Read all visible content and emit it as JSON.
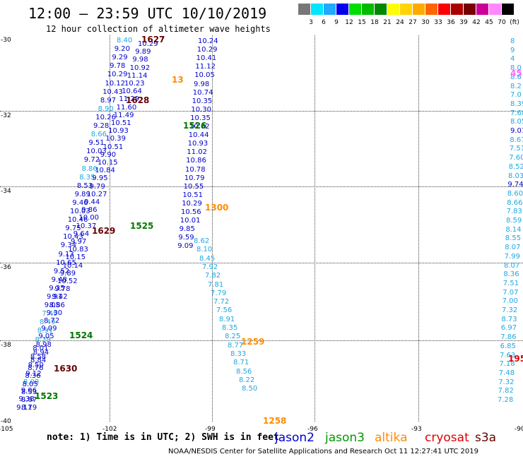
{
  "header": {
    "title": "12:00 – 23:59 UTC 10/10/2019",
    "subtitle": "12 hour collection of altimeter wave heights"
  },
  "color_scale": {
    "labels": [
      "3",
      "6",
      "9",
      "12",
      "15",
      "18",
      "21",
      "24",
      "27",
      "30",
      "33",
      "36",
      "39",
      "42",
      "45",
      "70",
      "(ft)"
    ],
    "colors": [
      "#777777",
      "#00e6ff",
      "#1faaff",
      "#0000ee",
      "#00dd00",
      "#00bb00",
      "#008800",
      "#ffff00",
      "#ffd400",
      "#ffaa00",
      "#ff6600",
      "#ff0000",
      "#aa0000",
      "#770000",
      "#cc0099",
      "#ff88ff",
      "#000000"
    ]
  },
  "axes": {
    "lat_labels": [
      "-30",
      "-32",
      "-34",
      "-36",
      "-38",
      "-40"
    ],
    "lon_labels": [
      "-105",
      "-102",
      "-99",
      "-96",
      "-93",
      "-90"
    ]
  },
  "passes": {
    "colors": {
      "jason2": "#0000cc",
      "jason3": "#007700",
      "altika": "#ff8c00",
      "cryosat": "#dd0000",
      "s3a": "#660000",
      "cyan": "#1fa8e0",
      "pink": "#ff66ff"
    },
    "track_labels": [
      {
        "t": "1627",
        "c": "s3a"
      },
      {
        "t": "1628",
        "c": "s3a"
      },
      {
        "t": "1629",
        "c": "s3a"
      },
      {
        "t": "1630",
        "c": "s3a"
      },
      {
        "t": "1525",
        "c": "jason3"
      },
      {
        "t": "1526",
        "c": "jason3"
      },
      {
        "t": "1524",
        "c": "jason3"
      },
      {
        "t": "1523",
        "c": "jason3"
      },
      {
        "t": "1300",
        "c": "altika"
      },
      {
        "t": "1259",
        "c": "altika"
      },
      {
        "t": "1258",
        "c": "altika"
      },
      {
        "t": "13",
        "c": "altika"
      },
      {
        "t": "195",
        "c": "cryosat"
      },
      {
        "t": "45.",
        "c": "pink"
      }
    ],
    "trackA": [
      "8.40",
      "9.20",
      "9.29",
      "9.78",
      "10.29",
      "10.12",
      "10.43",
      "8.97",
      "8.90",
      "10.26",
      "9.28",
      "8.66",
      "9.51",
      "10.03",
      "9.72",
      "8.86",
      "8.35",
      "8.53",
      "9.89",
      "9.46",
      "10.03",
      "10.46",
      "9.75",
      "10.43",
      "9.34",
      "9.13",
      "10.65",
      "9.52",
      "9.48",
      "9.35",
      "9.91",
      "9.05",
      "7.49",
      "8.49",
      "8.91",
      "8.39",
      "8.01",
      "8.58",
      "8.50",
      "9.12",
      "8.09",
      "9.06",
      "9.38",
      "9.11"
    ],
    "trackAc": [
      "cyan",
      "jason2",
      "jason2",
      "jason2",
      "jason2",
      "jason2",
      "jason2",
      "jason2",
      "cyan",
      "jason2",
      "jason2",
      "cyan",
      "jason2",
      "jason2",
      "jason2",
      "cyan",
      "cyan",
      "jason2",
      "jason2",
      "jason2",
      "jason2",
      "jason2",
      "jason2",
      "jason2",
      "jason2",
      "jason2",
      "jason2",
      "jason2",
      "jason2",
      "jason2",
      "jason2",
      "jason2",
      "cyan",
      "cyan",
      "cyan",
      "cyan",
      "jason2",
      "jason2",
      "jason2",
      "jason2",
      "cyan",
      "jason2",
      "jason2",
      "jason2"
    ],
    "trackA2": [
      "10.29",
      "9.89",
      "9.98",
      "10.92",
      "11.14",
      "10.23",
      "10.64",
      "11.29",
      "11.60",
      "11.49",
      "10.51",
      "10.93",
      "10.39",
      "10.51",
      "9.90",
      "10.15",
      "10.84",
      "9.95",
      "9.79",
      "10.27",
      "9.44",
      "9.86",
      "10.00",
      "10.37",
      "9.64",
      "9.97",
      "10.83",
      "10.15",
      "10.14",
      "9.89",
      "10.52",
      "9.78",
      "9.42",
      "8.86",
      "9.30",
      "8.72",
      "9.09",
      "9.05",
      "8.98",
      "8.94",
      "8.84",
      "8.76",
      "8.36",
      "8.05",
      "8.53",
      "8.67",
      "8.79"
    ],
    "trackB": [
      "10.24",
      "10.29",
      "10.41",
      "11.12",
      "10.05",
      "9.98",
      "10.74",
      "10.35",
      "10.30",
      "10.35",
      "10.62",
      "10.44",
      "10.93",
      "11.02",
      "10.86",
      "10.78",
      "10.79",
      "10.55",
      "10.51",
      "10.29",
      "10.56",
      "10.01",
      "9.85",
      "9.59",
      "9.09"
    ],
    "trackC": [
      "8.62",
      "8.10",
      "8.45",
      "7.92",
      "7.82",
      "7.81",
      "7.79",
      "7.72",
      "7.56",
      "8.91",
      "8.35",
      "8.25",
      "8.77",
      "8.33",
      "8.71",
      "8.56",
      "8.22",
      "8.50"
    ],
    "trackD": [
      "8",
      "9",
      "4",
      "8.0",
      "8.6",
      "8.2",
      "7.0",
      "8.39",
      "7.68",
      "8.05",
      "9.01",
      "8.67",
      "7.51",
      "7.60",
      "8.52",
      "8.03",
      "9.74",
      "8.60",
      "8.66",
      "7.83",
      "8.59",
      "8.14",
      "8.55",
      "8.07",
      "7.99",
      "8.07",
      "8.36",
      "7.51",
      "7.07",
      "7.00",
      "7.32",
      "8.73",
      "6.97",
      "7.86",
      "6.85",
      "7.63",
      "7.18",
      "7.48",
      "7.32",
      "7.82",
      "7.28"
    ],
    "trackDc": [
      "cyan",
      "cyan",
      "cyan",
      "cyan",
      "cyan",
      "cyan",
      "cyan",
      "cyan",
      "cyan",
      "cyan",
      "jason2",
      "cyan",
      "cyan",
      "cyan",
      "cyan",
      "cyan",
      "jason2",
      "cyan",
      "cyan",
      "cyan",
      "cyan",
      "cyan",
      "cyan",
      "cyan",
      "cyan",
      "cyan",
      "cyan",
      "cyan",
      "cyan",
      "cyan",
      "cyan",
      "cyan",
      "cyan",
      "cyan",
      "cyan",
      "cyan",
      "cyan",
      "cyan",
      "cyan",
      "cyan",
      "cyan"
    ]
  },
  "footer": {
    "note": "note: 1) Time is in UTC; 2) SWH is in feet",
    "legend": [
      {
        "label": "jason2",
        "color": "#0000cc"
      },
      {
        "label": "jason3",
        "color": "#009900"
      },
      {
        "label": "altika",
        "color": "#ff8c00"
      },
      {
        "label": "cryosat",
        "color": "#dd0000"
      },
      {
        "label": "s3a",
        "color": "#660000"
      }
    ],
    "credit": "NOAA/NESDIS Center for Satellite Applications and Research    Oct 11 12:27:41 UTC 2019"
  }
}
